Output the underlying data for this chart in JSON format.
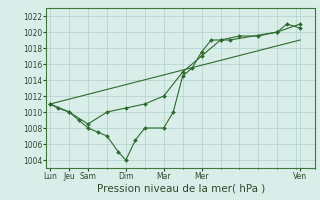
{
  "background_color": "#daeee9",
  "grid_color": "#b0d0cc",
  "line_color": "#2d6a2d",
  "marker_color": "#2d6a2d",
  "xlabel": "Pression niveau de la mer( hPa )",
  "xlabel_fontsize": 7.5,
  "yticks": [
    1004,
    1006,
    1008,
    1010,
    1012,
    1014,
    1016,
    1018,
    1020,
    1022
  ],
  "ylim": [
    1003,
    1023
  ],
  "xlim": [
    -0.2,
    14.0
  ],
  "series": [
    {
      "x": [
        0,
        0.4,
        1.0,
        1.5,
        2.0,
        2.5,
        3.0,
        3.6,
        4.0,
        4.5,
        5.0,
        6.0,
        6.5,
        7.0,
        7.5,
        8.0,
        8.5,
        9.0,
        9.5,
        12.0,
        12.5,
        13.2
      ],
      "y": [
        1011,
        1010.5,
        1010,
        1009,
        1008,
        1007.5,
        1007,
        1005,
        1004,
        1006.5,
        1008,
        1008,
        1010,
        1014.5,
        1015.5,
        1017.5,
        1019,
        1019,
        1019,
        1020,
        1021,
        1020.5
      ]
    },
    {
      "x": [
        0,
        1,
        2,
        3,
        4,
        5,
        6,
        7,
        8,
        9,
        10,
        11,
        12,
        13.2
      ],
      "y": [
        1011,
        1010,
        1008.5,
        1010,
        1010.5,
        1011,
        1012,
        1015,
        1017,
        1019,
        1019.5,
        1019.5,
        1020,
        1021
      ]
    },
    {
      "x": [
        0,
        13.2
      ],
      "y": [
        1011,
        1019
      ]
    }
  ],
  "major_xtick_pos": [
    0,
    1,
    2,
    4,
    6,
    8,
    13.2
  ],
  "major_xtick_labels": [
    "Lun",
    "Jeu",
    "Sam",
    "Dim",
    "Mar",
    "Mer",
    "Ven"
  ],
  "minor_xtick_pos": [
    0,
    1,
    2,
    3,
    4,
    5,
    6,
    7,
    8,
    9,
    10,
    11,
    12,
    13,
    14
  ]
}
